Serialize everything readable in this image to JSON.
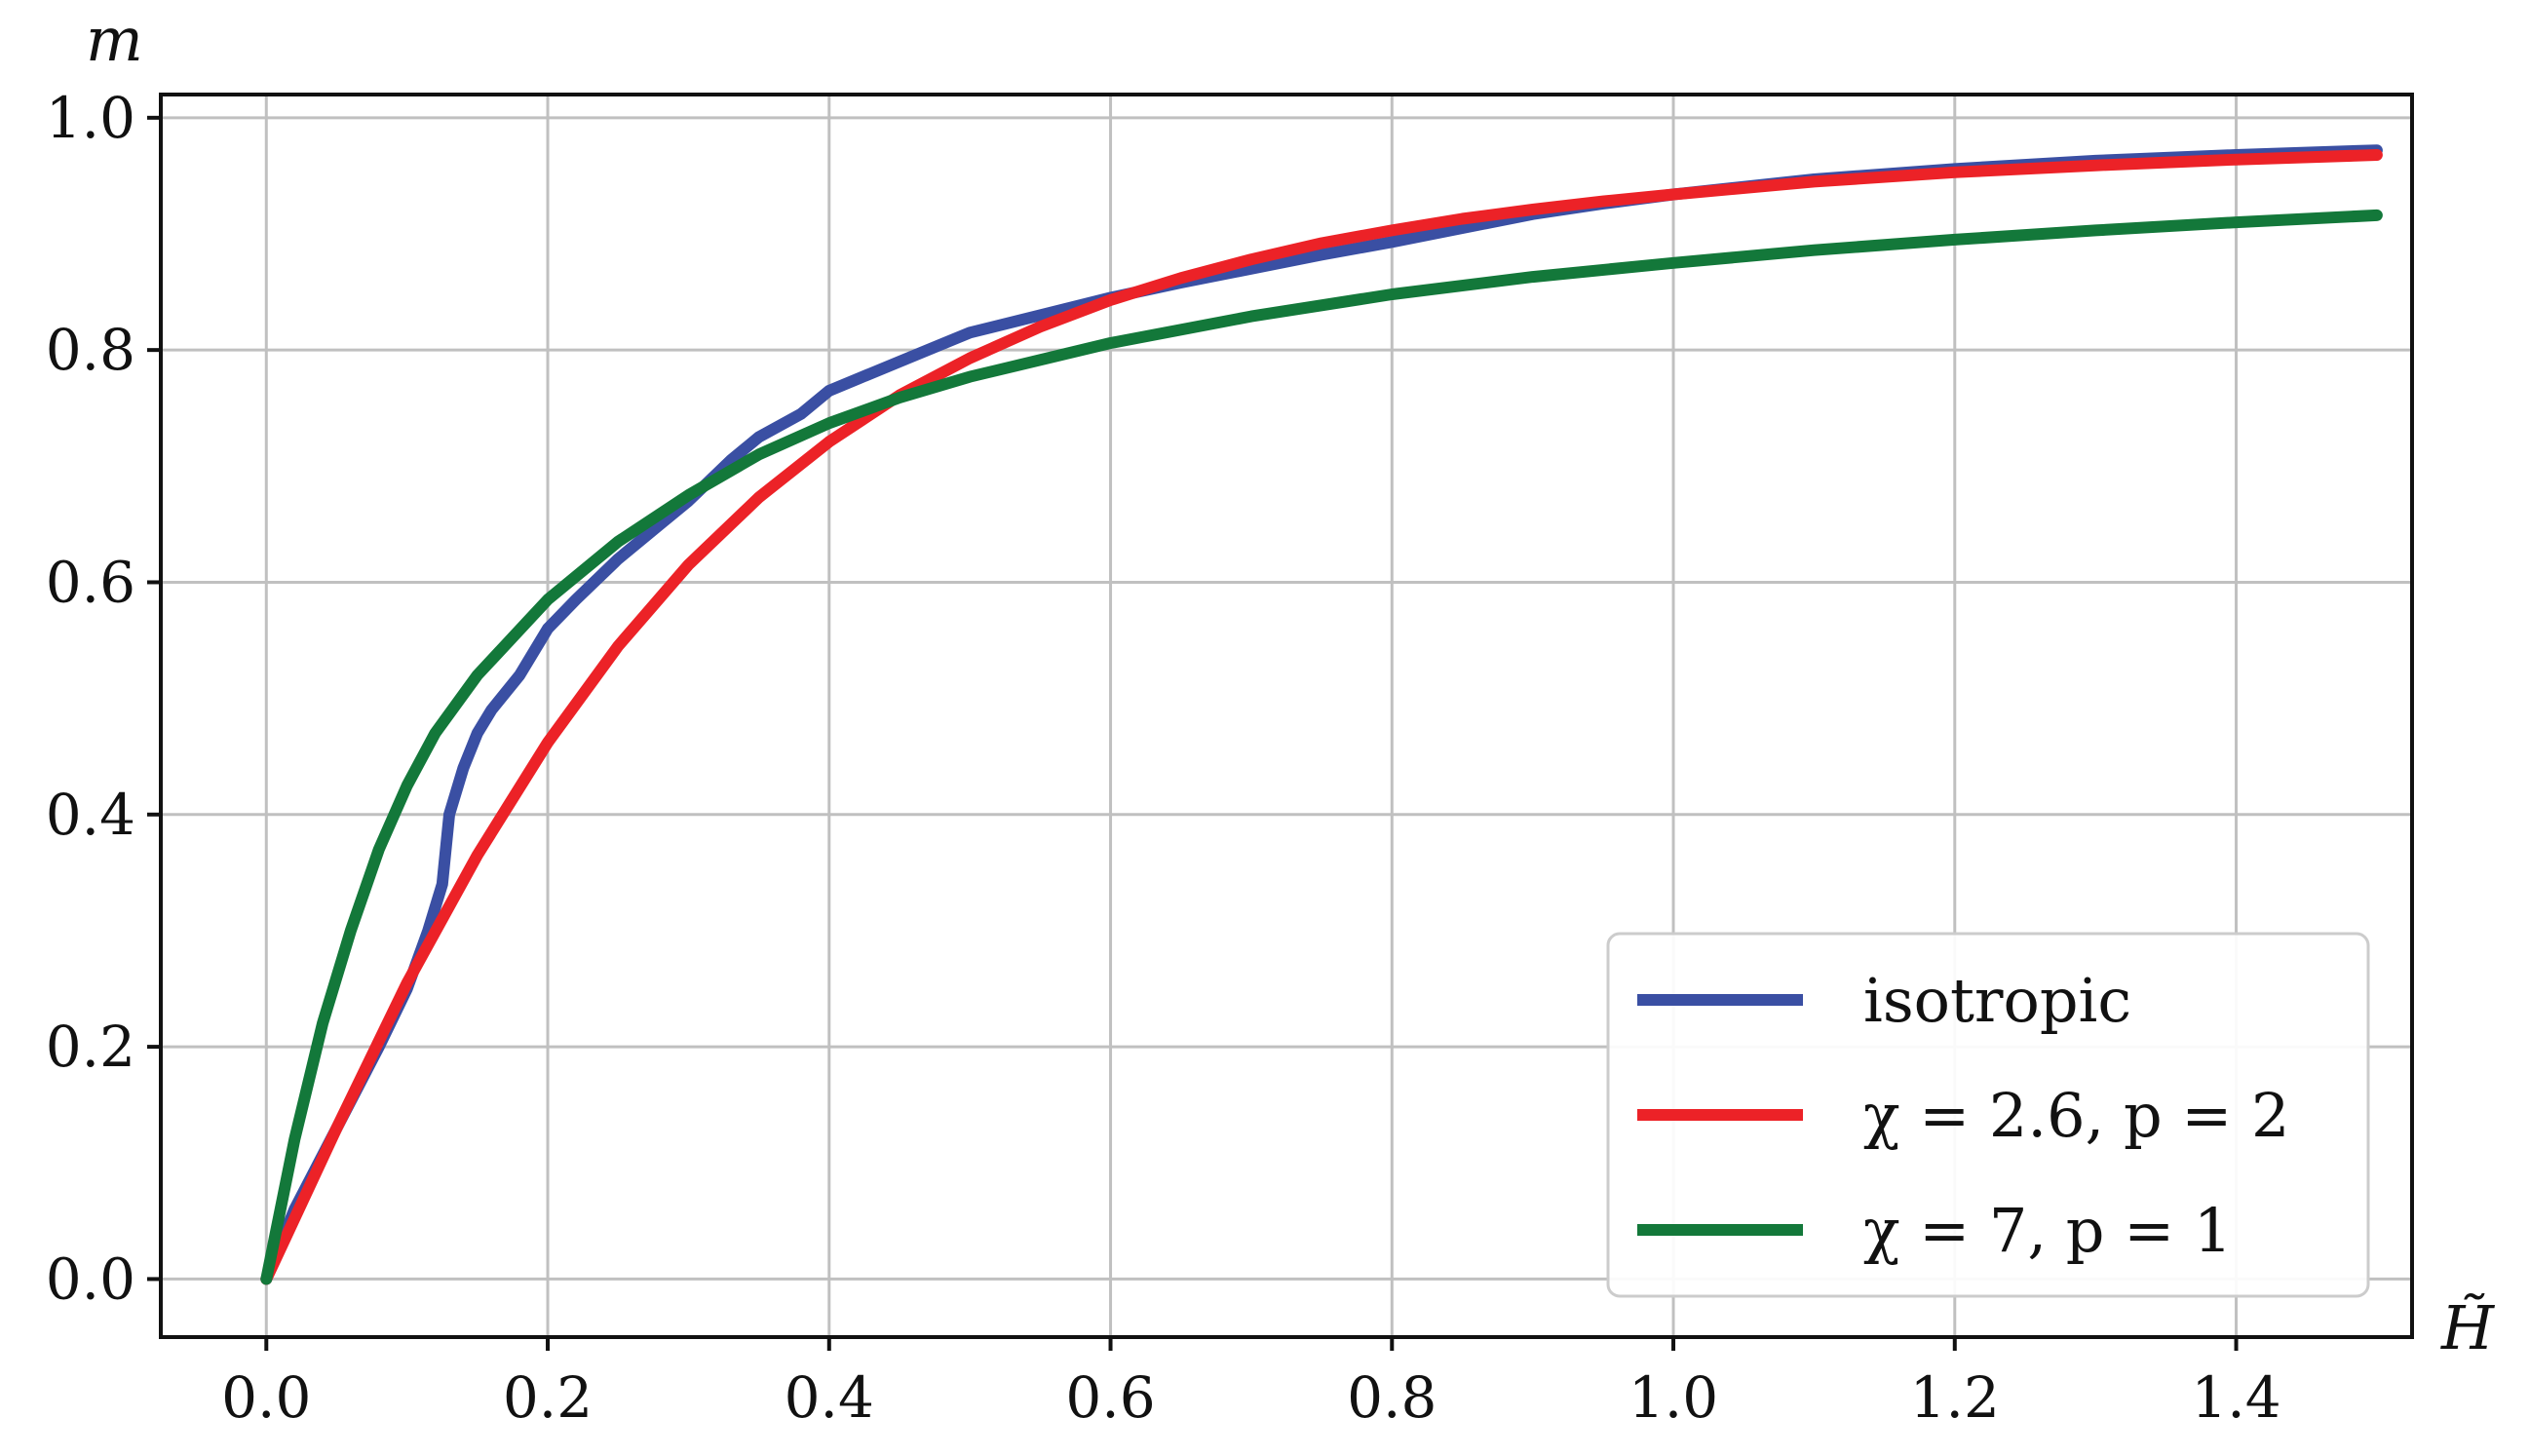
{
  "chart_data": {
    "type": "line",
    "title": "",
    "xlabel": "H̃",
    "ylabel": "m",
    "xlim": [
      -0.075,
      1.525
    ],
    "ylim": [
      -0.05,
      1.02
    ],
    "xticks": [
      0.0,
      0.2,
      0.4,
      0.6,
      0.8,
      1.0,
      1.2,
      1.4
    ],
    "xtick_labels": [
      "0.0",
      "0.2",
      "0.4",
      "0.6",
      "0.8",
      "1.0",
      "1.2",
      "1.4"
    ],
    "yticks": [
      0.0,
      0.2,
      0.4,
      0.6,
      0.8,
      1.0
    ],
    "ytick_labels": [
      "0.0",
      "0.2",
      "0.4",
      "0.6",
      "0.8",
      "1.0"
    ],
    "grid": true,
    "legend_position": "bottom-right",
    "series": [
      {
        "name": "isotropic",
        "color": "#3a4fa3",
        "x": [
          0.0,
          0.02,
          0.05,
          0.08,
          0.1,
          0.115,
          0.125,
          0.13,
          0.14,
          0.15,
          0.16,
          0.18,
          0.2,
          0.22,
          0.25,
          0.28,
          0.3,
          0.33,
          0.35,
          0.38,
          0.4,
          0.42,
          0.45,
          0.48,
          0.5,
          0.55,
          0.6,
          0.65,
          0.7,
          0.75,
          0.8,
          0.85,
          0.9,
          0.95,
          1.0,
          1.1,
          1.2,
          1.3,
          1.4,
          1.5
        ],
        "y": [
          0.0,
          0.06,
          0.13,
          0.2,
          0.25,
          0.3,
          0.34,
          0.4,
          0.44,
          0.47,
          0.49,
          0.52,
          0.56,
          0.585,
          0.62,
          0.65,
          0.67,
          0.705,
          0.725,
          0.745,
          0.765,
          0.775,
          0.79,
          0.805,
          0.815,
          0.83,
          0.845,
          0.858,
          0.87,
          0.882,
          0.893,
          0.905,
          0.917,
          0.926,
          0.934,
          0.947,
          0.956,
          0.963,
          0.968,
          0.972
        ]
      },
      {
        "name": "χ = 2.6, p = 2",
        "color": "#ec2227",
        "x": [
          0.0,
          0.05,
          0.1,
          0.15,
          0.2,
          0.25,
          0.3,
          0.35,
          0.4,
          0.45,
          0.5,
          0.55,
          0.6,
          0.65,
          0.7,
          0.75,
          0.8,
          0.85,
          0.9,
          0.95,
          1.0,
          1.1,
          1.2,
          1.3,
          1.4,
          1.5
        ],
        "y": [
          0.0,
          0.13,
          0.255,
          0.365,
          0.462,
          0.545,
          0.615,
          0.673,
          0.721,
          0.761,
          0.793,
          0.82,
          0.843,
          0.862,
          0.878,
          0.892,
          0.903,
          0.913,
          0.921,
          0.928,
          0.934,
          0.945,
          0.953,
          0.959,
          0.964,
          0.968
        ]
      },
      {
        "name": "χ = 7, p = 1",
        "color": "#13783a",
        "x": [
          0.0,
          0.02,
          0.04,
          0.06,
          0.08,
          0.1,
          0.12,
          0.15,
          0.2,
          0.25,
          0.3,
          0.35,
          0.4,
          0.45,
          0.5,
          0.6,
          0.7,
          0.8,
          0.9,
          1.0,
          1.1,
          1.2,
          1.3,
          1.4,
          1.5
        ],
        "y": [
          0.0,
          0.12,
          0.22,
          0.3,
          0.37,
          0.425,
          0.47,
          0.52,
          0.585,
          0.635,
          0.675,
          0.71,
          0.737,
          0.759,
          0.777,
          0.806,
          0.829,
          0.848,
          0.863,
          0.875,
          0.886,
          0.895,
          0.903,
          0.91,
          0.916
        ]
      }
    ]
  }
}
